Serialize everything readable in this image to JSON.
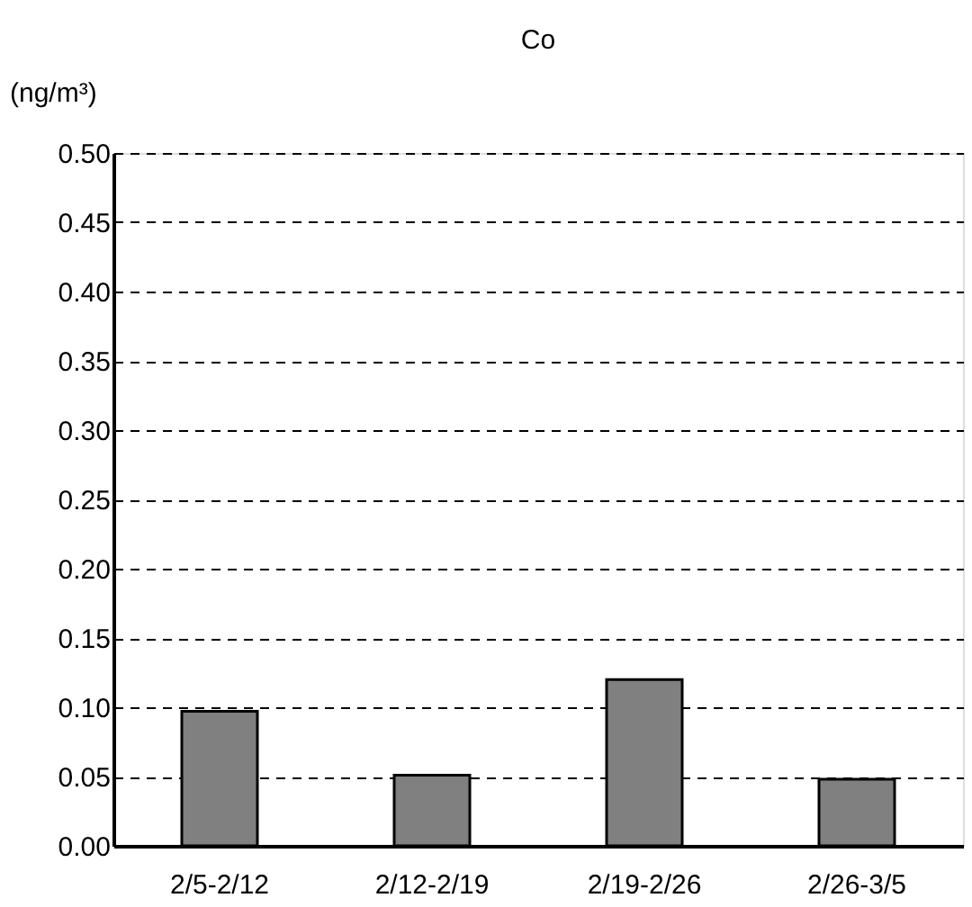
{
  "chart_data": {
    "type": "bar",
    "title": "Co",
    "ylabel": "(ng/m³)",
    "categories": [
      "2/5-2/12",
      "2/12-2/19",
      "2/19-2/26",
      "2/26-3/5"
    ],
    "values": [
      0.097,
      0.051,
      0.12,
      0.048
    ],
    "color": "#808080",
    "ylim": [
      0,
      0.5
    ],
    "yticks": [
      {
        "value": 0,
        "label": "0.00"
      },
      0.05,
      {
        "value": 0.1,
        "label": "0.10"
      },
      0.15,
      {
        "value": 0.2,
        "label": "0.20"
      },
      0.25,
      {
        "value": 0.3,
        "label": "0.30"
      },
      0.35,
      {
        "value": 0.4,
        "label": "0.40"
      },
      0.45,
      {
        "value": 0.5,
        "label": "0.50"
      }
    ],
    "grid": "y"
  }
}
